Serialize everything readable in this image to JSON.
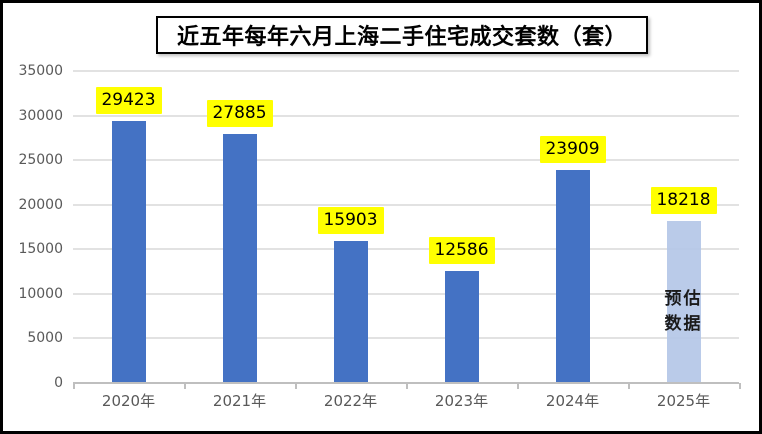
{
  "chart_data": {
    "type": "bar",
    "title": "近五年每年六月上海二手住宅成交套数（套）",
    "categories": [
      "2020年",
      "2021年",
      "2022年",
      "2023年",
      "2024年",
      "2025年"
    ],
    "values": [
      29423,
      27885,
      15903,
      12586,
      23909,
      18218
    ],
    "data_labels": [
      "29423",
      "27885",
      "15903",
      "12586",
      "23909",
      "18218"
    ],
    "bar_colors": [
      "#4472C4",
      "#4472C4",
      "#4472C4",
      "#4472C4",
      "#4472C4",
      "#B4C7E7"
    ],
    "ylim": [
      0,
      35000
    ],
    "ytick_step": 5000,
    "ytick_labels": [
      "0",
      "5000",
      "10000",
      "15000",
      "20000",
      "25000",
      "30000",
      "35000"
    ],
    "xlabel": "",
    "ylabel": "",
    "grid": true,
    "legend": "none",
    "annotation": {
      "lines": [
        "预估",
        "数据"
      ],
      "category_index": 5
    },
    "colors": {
      "bar_primary": "#4472C4",
      "bar_estimate": "#B4C7E7",
      "data_label_background": "#FFFF00",
      "data_label_text": "#000000",
      "gridline": "#E2E2E2",
      "axis_line": "#BFBFBF",
      "axis_text": "#595959",
      "title_text": "#000000",
      "frame_border": "#000000",
      "background": "#FFFFFF"
    }
  }
}
